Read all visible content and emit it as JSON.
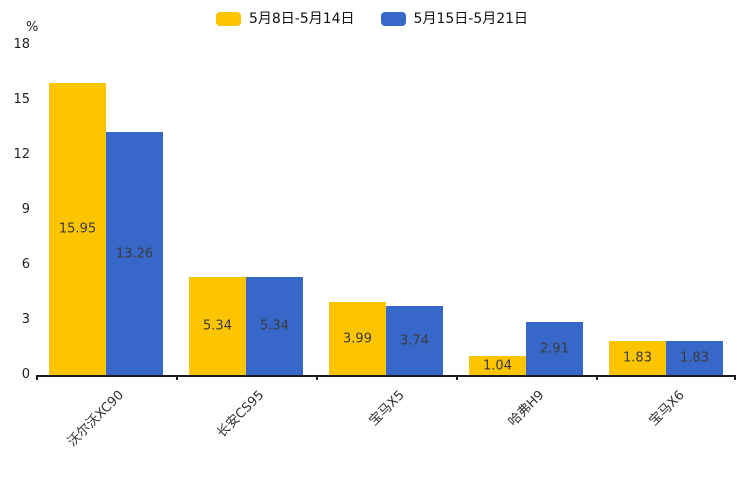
{
  "chart_data": {
    "type": "bar",
    "title": "",
    "unit": "%",
    "xlabel": "",
    "ylabel": "%",
    "categories": [
      "沃尔沃XC90",
      "长安CS95",
      "宝马X5",
      "哈弗H9",
      "宝马X6"
    ],
    "series": [
      {
        "name": "5月8日-5月14日",
        "color": "#FDC500",
        "values": [
          15.95,
          5.34,
          3.99,
          1.04,
          1.83
        ]
      },
      {
        "name": "5月15日-5月21日",
        "color": "#3767C8",
        "values": [
          13.26,
          5.34,
          3.74,
          2.91,
          1.83
        ]
      }
    ],
    "ylim": [
      0,
      18
    ],
    "yticks": [
      0,
      3,
      6,
      9,
      12,
      15,
      18
    ],
    "grid": false,
    "legend_position": "top",
    "value_labels": true,
    "x_label_rotation_deg": -45
  },
  "colors": {
    "axis": "#1c1c1c",
    "axis_text": "#222222",
    "value_label_text": "#3b3b3b",
    "background": "#ffffff"
  }
}
